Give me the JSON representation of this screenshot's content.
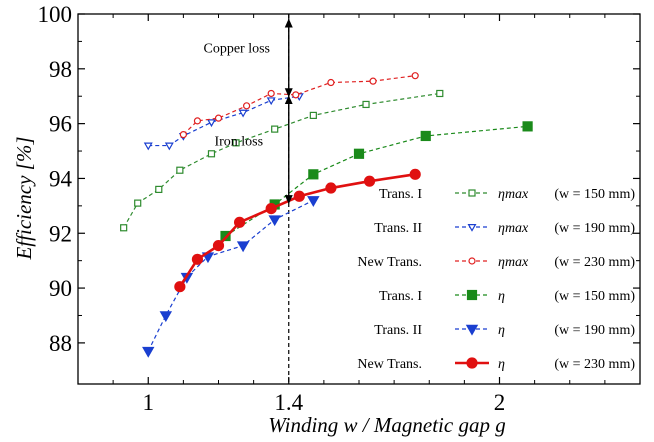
{
  "chart_data": {
    "type": "line",
    "xlabel": "Winding w / Magnetic gap g",
    "ylabel": "Efficiency [%]",
    "xlim": [
      0.8,
      2.4
    ],
    "ylim": [
      86.5,
      100
    ],
    "x_tick_labels": [
      "1",
      "1.4",
      "2"
    ],
    "x_ticks": [
      1,
      1.4,
      2
    ],
    "y_ticks": [
      88,
      90,
      92,
      94,
      96,
      98,
      100
    ],
    "y_tick_labels": [
      "88",
      "90",
      "92",
      "94",
      "96",
      "98",
      "100"
    ],
    "grid": false,
    "legend_position": "bottom-right",
    "series": [
      {
        "name": "Trans. I  ηmax (w = 150 mm)",
        "legend_group": "Trans. I",
        "legend_symbol": "ηmax",
        "legend_condition": "(w = 150 mm)",
        "color": "#2e8b2e",
        "marker": "square-open",
        "line": "dashed",
        "x": [
          0.93,
          0.97,
          1.03,
          1.09,
          1.18,
          1.25,
          1.36,
          1.47,
          1.62,
          1.83
        ],
        "y": [
          92.2,
          93.1,
          93.6,
          94.3,
          94.9,
          95.3,
          95.8,
          96.3,
          96.7,
          97.1
        ]
      },
      {
        "name": "Trans. II  ηmax (w = 190 mm)",
        "legend_group": "Trans. II",
        "legend_symbol": "ηmax",
        "legend_condition": "(w = 190 mm)",
        "color": "#1a3fd0",
        "marker": "triangle-down-open",
        "line": "dashed",
        "x": [
          1.0,
          1.06,
          1.1,
          1.18,
          1.27,
          1.35,
          1.43
        ],
        "y": [
          95.2,
          95.2,
          95.55,
          96.05,
          96.4,
          96.85,
          97.0
        ]
      },
      {
        "name": "New Trans.  ηmax (w = 230 mm)",
        "legend_group": "New Trans.",
        "legend_symbol": "ηmax",
        "legend_condition": "(w = 230 mm)",
        "color": "#e02020",
        "marker": "circle-open",
        "line": "dashed",
        "x": [
          1.1,
          1.14,
          1.2,
          1.28,
          1.35,
          1.42,
          1.52,
          1.64,
          1.76
        ],
        "y": [
          95.6,
          96.1,
          96.2,
          96.65,
          97.1,
          97.05,
          97.5,
          97.55,
          97.75
        ]
      },
      {
        "name": "Trans. I  η (w = 150 mm)",
        "legend_group": "Trans. I",
        "legend_symbol": "η",
        "legend_condition": "(w = 150 mm)",
        "color": "#1a8a1a",
        "marker": "square-filled",
        "line": "dashed",
        "x": [
          1.22,
          1.36,
          1.47,
          1.6,
          1.79,
          2.08
        ],
        "y": [
          91.9,
          93.05,
          94.15,
          94.9,
          95.55,
          95.9
        ]
      },
      {
        "name": "Trans. II  η (w = 190 mm)",
        "legend_group": "Trans. II",
        "legend_symbol": "η",
        "legend_condition": "(w = 190 mm)",
        "color": "#1a3fd0",
        "marker": "triangle-down-filled",
        "line": "dashed",
        "x": [
          1.0,
          1.05,
          1.11,
          1.17,
          1.27,
          1.36,
          1.47
        ],
        "y": [
          87.7,
          89.0,
          90.4,
          91.15,
          91.55,
          92.5,
          93.2
        ]
      },
      {
        "name": "New Trans.  η (w = 230 mm)",
        "legend_group": "New Trans.",
        "legend_symbol": "η",
        "legend_condition": "(w = 230 mm)",
        "color": "#e01010",
        "marker": "circle-filled",
        "line": "solid",
        "x": [
          1.09,
          1.14,
          1.2,
          1.26,
          1.35,
          1.43,
          1.52,
          1.63,
          1.76
        ],
        "y": [
          90.05,
          91.05,
          91.55,
          92.4,
          92.9,
          93.35,
          93.65,
          93.9,
          94.15
        ]
      }
    ],
    "annotations": [
      {
        "text": "Copper loss",
        "x": 1.4,
        "y_from": 97.0,
        "y_to": 99.8
      },
      {
        "text": "Iron loss",
        "x": 1.4,
        "y_from": 93.1,
        "y_to": 97.0
      }
    ],
    "reference_line": {
      "x": 1.4,
      "style": "dashed"
    }
  }
}
